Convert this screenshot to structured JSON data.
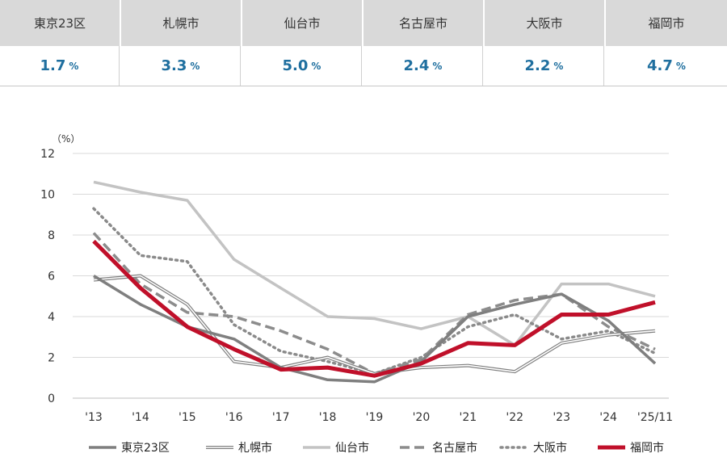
{
  "summary": [
    {
      "city": "東京23区",
      "value": "1.7",
      "unit": "%"
    },
    {
      "city": "札幌市",
      "value": "3.3",
      "unit": "%"
    },
    {
      "city": "仙台市",
      "value": "5.0",
      "unit": "%"
    },
    {
      "city": "名古屋市",
      "value": "2.4",
      "unit": "%"
    },
    {
      "city": "大阪市",
      "value": "2.2",
      "unit": "%"
    },
    {
      "city": "福岡市",
      "value": "4.7",
      "unit": "%"
    }
  ],
  "chart_data": {
    "type": "line",
    "unit_label": "（%）",
    "ylim": [
      0,
      12
    ],
    "yticks": [
      0,
      2,
      4,
      6,
      8,
      10,
      12
    ],
    "categories": [
      "'13",
      "'14",
      "'15",
      "'16",
      "'17",
      "'18",
      "'19",
      "'20",
      "'21",
      "'22",
      "'23",
      "'24",
      "'25/11"
    ],
    "series": [
      {
        "name": "東京23区",
        "style": "solid",
        "color": "#7f7f7f",
        "values": [
          6.0,
          4.6,
          3.5,
          2.9,
          1.5,
          0.9,
          0.8,
          1.8,
          4.0,
          4.6,
          5.1,
          3.8,
          1.7
        ]
      },
      {
        "name": "札幌市",
        "style": "double",
        "color": "#808080",
        "values": [
          5.8,
          6.0,
          4.6,
          1.8,
          1.5,
          2.0,
          1.2,
          1.5,
          1.6,
          1.3,
          2.7,
          3.1,
          3.3
        ]
      },
      {
        "name": "仙台市",
        "style": "solid",
        "color": "#c3c3c3",
        "values": [
          10.6,
          10.1,
          9.7,
          6.8,
          5.4,
          4.0,
          3.9,
          3.4,
          4.0,
          2.6,
          5.6,
          5.6,
          5.0
        ]
      },
      {
        "name": "名古屋市",
        "style": "dashed",
        "color": "#8c8c8c",
        "values": [
          8.1,
          5.6,
          4.2,
          4.0,
          3.3,
          2.4,
          1.2,
          1.9,
          4.1,
          4.8,
          5.1,
          3.5,
          2.4
        ]
      },
      {
        "name": "大阪市",
        "style": "dotted",
        "color": "#8a8a8a",
        "values": [
          9.3,
          7.0,
          6.7,
          3.6,
          2.3,
          1.8,
          1.2,
          2.0,
          3.5,
          4.1,
          2.9,
          3.3,
          2.2
        ]
      },
      {
        "name": "福岡市",
        "style": "bold",
        "color": "#c0102a",
        "values": [
          7.7,
          5.4,
          3.5,
          2.4,
          1.4,
          1.5,
          1.1,
          1.7,
          2.7,
          2.6,
          4.1,
          4.1,
          4.7
        ]
      }
    ]
  }
}
